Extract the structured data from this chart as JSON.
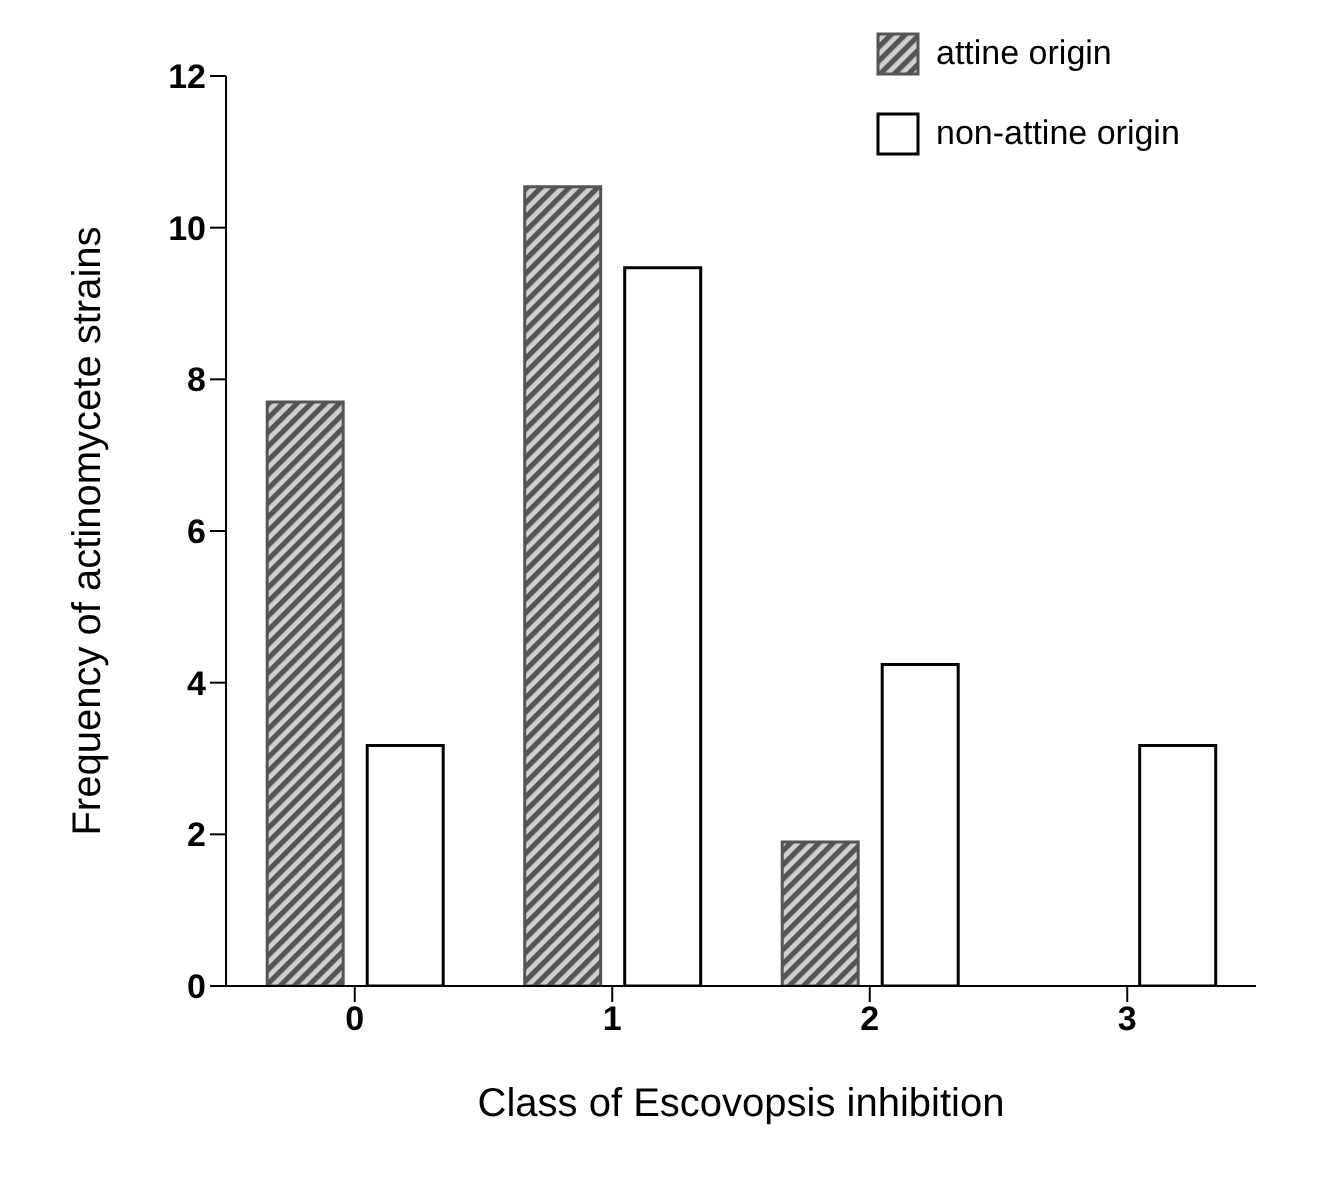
{
  "chart_data": {
    "type": "bar",
    "xlabel": "Class of Escovopsis inhibition",
    "ylabel": "Frequency of actinomycete strains",
    "categories": [
      "0",
      "1",
      "2",
      "3"
    ],
    "series": [
      {
        "name": "attine origin",
        "color": "#555555",
        "values": [
          7.7,
          10.54,
          1.9,
          0
        ]
      },
      {
        "name": "non-attine origin",
        "color": "#ffffff",
        "values": [
          3.17,
          9.47,
          4.24,
          3.17
        ]
      }
    ],
    "ylim": [
      0,
      12
    ],
    "yticks": [
      0,
      2,
      4,
      6,
      8,
      10,
      12
    ],
    "grid": false,
    "legend": "top right"
  }
}
